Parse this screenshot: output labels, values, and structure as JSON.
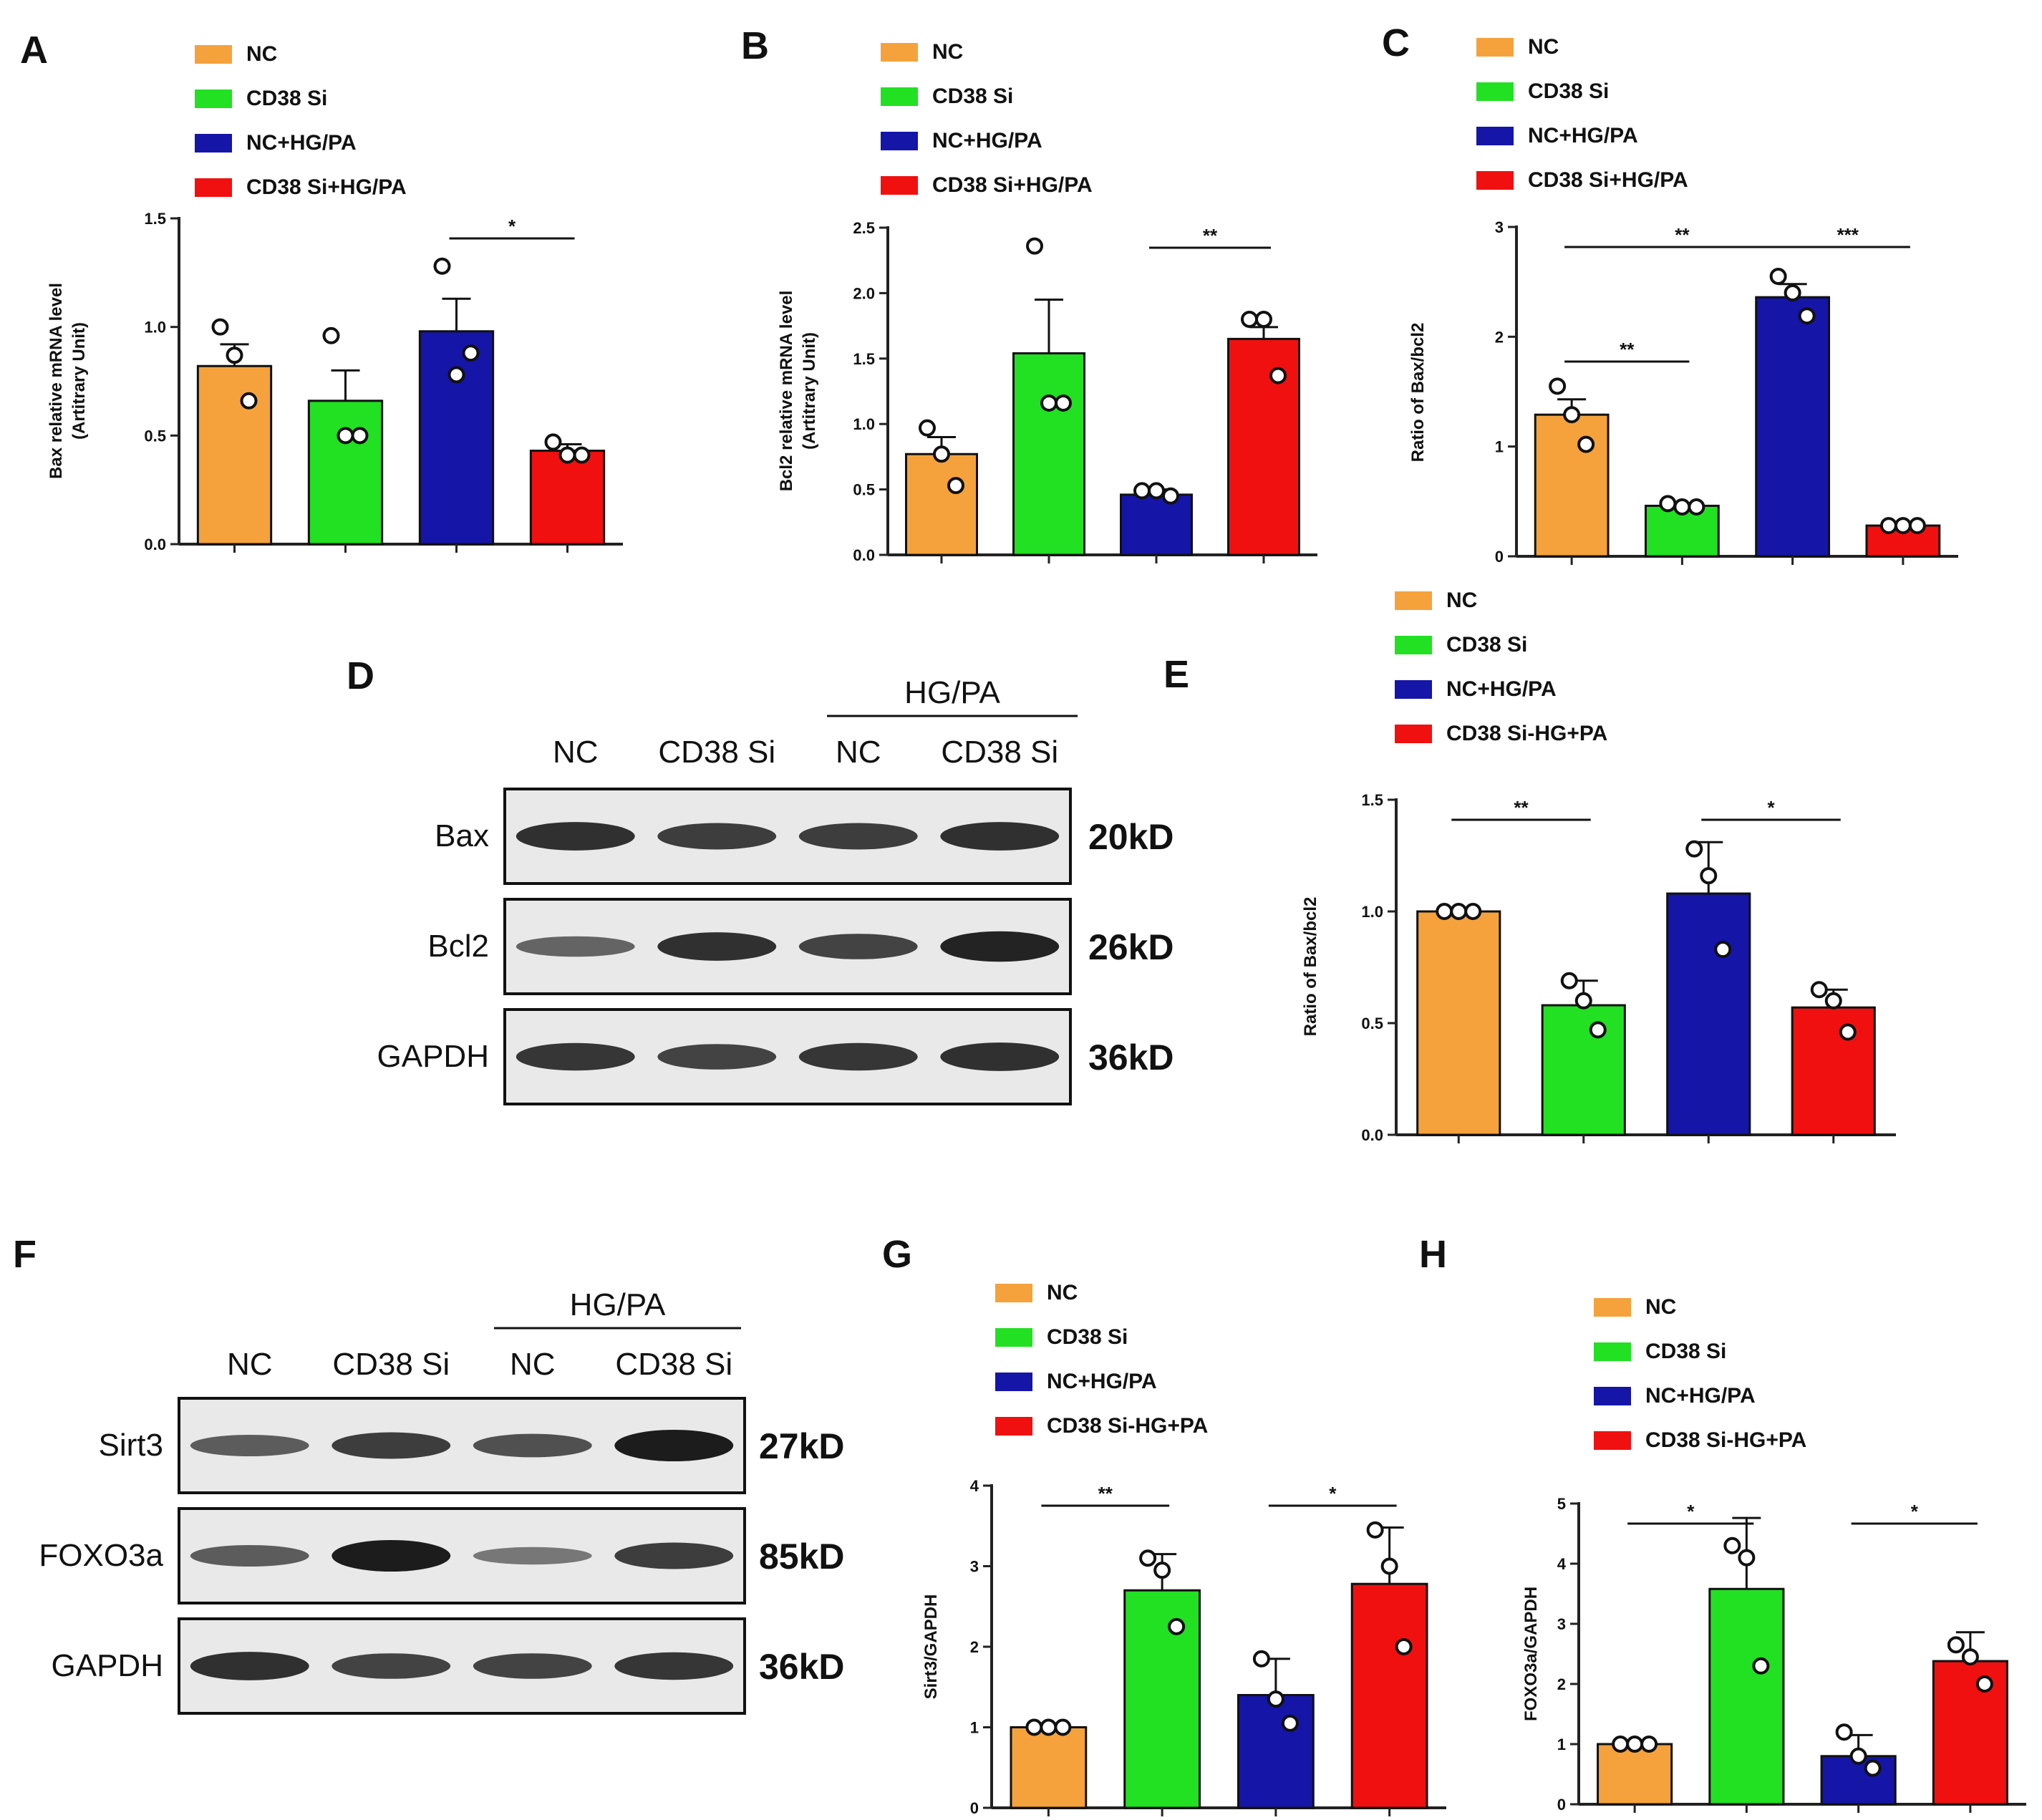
{
  "colors": {
    "NC": "#f5a23c",
    "CD38Si": "#22e022",
    "NCHG": "#1515a8",
    "CD38SiHG": "#f01010"
  },
  "panels": {
    "A": {
      "letter": "A",
      "legend": [
        "NC",
        "CD38 Si",
        "NC+HG/PA",
        "CD38 Si+HG/PA"
      ],
      "ylabel_line1": "Bax  relative mRNA level",
      "ylabel_line2": "(Artitrary Unit)"
    },
    "B": {
      "letter": "B",
      "legend": [
        "NC",
        "CD38 Si",
        "NC+HG/PA",
        "CD38 Si+HG/PA"
      ],
      "ylabel_line1": "Bcl2  relative mRNA level",
      "ylabel_line2": "(Artitrary Unit)"
    },
    "C": {
      "letter": "C",
      "legend": [
        "NC",
        "CD38 Si",
        "NC+HG/PA",
        "CD38 Si+HG/PA"
      ],
      "ylabel_line1": "Ratio of Bax/bcl2",
      "ylabel_line2": ""
    },
    "D": {
      "letter": "D"
    },
    "E": {
      "letter": "E",
      "legend": [
        "NC",
        "CD38 Si",
        "NC+HG/PA",
        "CD38 Si-HG+PA"
      ],
      "ylabel_line1": "Ratio of Bax/bcl2",
      "ylabel_line2": ""
    },
    "F": {
      "letter": "F"
    },
    "G": {
      "letter": "G",
      "legend": [
        "NC",
        "CD38 Si",
        "NC+HG/PA",
        "CD38 Si-HG+PA"
      ],
      "ylabel_line1": "Sirt3/GAPDH",
      "ylabel_line2": ""
    },
    "H": {
      "letter": "H",
      "legend": [
        "NC",
        "CD38 Si",
        "NC+HG/PA",
        "CD38 Si-HG+PA"
      ],
      "ylabel_line1": "FOXO3a/GAPDH",
      "ylabel_line2": ""
    }
  },
  "blots": [
    {
      "letter": "D",
      "hg_label": "HG/PA",
      "lanes": [
        "NC",
        "CD38 Si",
        "NC",
        "CD38 Si"
      ],
      "rows": [
        {
          "protein": "Bax",
          "kd": "20kD",
          "intensity": [
            0.85,
            0.75,
            0.75,
            0.85
          ]
        },
        {
          "protein": "Bcl2",
          "kd": "26kD",
          "intensity": [
            0.45,
            0.85,
            0.7,
            0.95
          ]
        },
        {
          "protein": "GAPDH",
          "kd": "36kD",
          "intensity": [
            0.8,
            0.7,
            0.8,
            0.85
          ]
        }
      ]
    },
    {
      "letter": "F",
      "hg_label": "HG/PA",
      "lanes": [
        "NC",
        "CD38 Si",
        "NC",
        "CD38 Si"
      ],
      "rows": [
        {
          "protein": "Sirt3",
          "kd": "27kD",
          "intensity": [
            0.5,
            0.75,
            0.6,
            1.0
          ]
        },
        {
          "protein": "FOXO3a",
          "kd": "85kD",
          "intensity": [
            0.5,
            1.0,
            0.3,
            0.75
          ]
        },
        {
          "protein": "GAPDH",
          "kd": "36kD",
          "intensity": [
            0.85,
            0.7,
            0.7,
            0.8
          ]
        }
      ]
    }
  ],
  "chart_data": [
    {
      "panel": "A",
      "type": "bar",
      "categories": [
        "NC",
        "CD38 Si",
        "NC+HG/PA",
        "CD38 Si+HG/PA"
      ],
      "values": [
        0.82,
        0.66,
        0.98,
        0.43
      ],
      "errors": [
        0.1,
        0.14,
        0.15,
        0.03
      ],
      "points": [
        [
          1.0,
          0.87,
          0.66
        ],
        [
          0.96,
          0.5,
          0.5
        ],
        [
          1.28,
          0.78,
          0.88
        ],
        [
          0.47,
          0.41,
          0.41
        ]
      ],
      "ylim": [
        0,
        1.5
      ],
      "yticks": [
        0.0,
        0.5,
        1.0,
        1.5
      ],
      "tick_labels": [
        "0.0",
        "0.5",
        "1.0",
        "1.5"
      ],
      "significance": [
        {
          "from": 2,
          "to": 3,
          "label": "*"
        }
      ]
    },
    {
      "panel": "B",
      "type": "bar",
      "categories": [
        "NC",
        "CD38 Si",
        "NC+HG/PA",
        "CD38 Si+HG/PA"
      ],
      "values": [
        0.77,
        1.54,
        0.46,
        1.65
      ],
      "errors": [
        0.13,
        0.41,
        0.04,
        0.09
      ],
      "points": [
        [
          0.97,
          0.77,
          0.53
        ],
        [
          2.36,
          1.16,
          1.16
        ],
        [
          0.49,
          0.49,
          0.45
        ],
        [
          1.8,
          1.8,
          1.37
        ]
      ],
      "ylim": [
        0,
        2.5
      ],
      "yticks": [
        0.0,
        0.5,
        1.0,
        1.5,
        2.0,
        2.5
      ],
      "tick_labels": [
        "0.0",
        "0.5",
        "1.0",
        "1.5",
        "2.0",
        "2.5"
      ],
      "significance": [
        {
          "from": 2,
          "to": 3,
          "label": "**"
        }
      ]
    },
    {
      "panel": "C",
      "type": "bar",
      "categories": [
        "NC",
        "CD38 Si",
        "NC+HG/PA",
        "CD38 Si+HG/PA"
      ],
      "values": [
        1.29,
        0.46,
        2.36,
        0.28
      ],
      "errors": [
        0.14,
        0.02,
        0.12,
        0.02
      ],
      "points": [
        [
          1.55,
          1.29,
          1.02
        ],
        [
          0.48,
          0.45,
          0.45
        ],
        [
          2.55,
          2.4,
          2.19
        ],
        [
          0.28,
          0.28,
          0.28
        ]
      ],
      "ylim": [
        0,
        3
      ],
      "yticks": [
        0,
        1,
        2,
        3
      ],
      "tick_labels": [
        "0",
        "1",
        "2",
        "3"
      ],
      "significance": [
        {
          "from": 0,
          "to": 1,
          "label": "**"
        },
        {
          "from": 0,
          "to": 2,
          "label": "**"
        },
        {
          "from": 2,
          "to": 3,
          "label": "***"
        }
      ]
    },
    {
      "panel": "E",
      "type": "bar",
      "categories": [
        "NC",
        "CD38 Si",
        "NC+HG/PA",
        "CD38 Si-HG+PA"
      ],
      "values": [
        1.0,
        0.58,
        1.08,
        0.57
      ],
      "errors": [
        0.0,
        0.11,
        0.23,
        0.08
      ],
      "points": [
        [
          1.0,
          1.0,
          1.0
        ],
        [
          0.69,
          0.6,
          0.47
        ],
        [
          1.28,
          1.16,
          0.83
        ],
        [
          0.65,
          0.6,
          0.46
        ]
      ],
      "ylim": [
        0,
        1.5
      ],
      "yticks": [
        0.0,
        0.5,
        1.0,
        1.5
      ],
      "tick_labels": [
        "0.0",
        "0.5",
        "1.0",
        "1.5"
      ],
      "significance": [
        {
          "from": 0,
          "to": 1,
          "label": "**"
        },
        {
          "from": 2,
          "to": 3,
          "label": "*"
        }
      ]
    },
    {
      "panel": "G",
      "type": "bar",
      "categories": [
        "NC",
        "CD38 Si",
        "NC+HG/PA",
        "CD38 Si-HG+PA"
      ],
      "values": [
        1.0,
        2.7,
        1.4,
        2.78
      ],
      "errors": [
        0.0,
        0.45,
        0.45,
        0.7
      ],
      "points": [
        [
          1.0,
          1.0,
          1.0
        ],
        [
          3.1,
          2.95,
          2.25
        ],
        [
          1.85,
          1.35,
          1.05
        ],
        [
          3.45,
          3.0,
          2.0
        ]
      ],
      "ylim": [
        0,
        4
      ],
      "yticks": [
        0,
        1,
        2,
        3,
        4
      ],
      "tick_labels": [
        "0",
        "1",
        "2",
        "3",
        "4"
      ],
      "significance": [
        {
          "from": 0,
          "to": 1,
          "label": "**"
        },
        {
          "from": 2,
          "to": 3,
          "label": "*"
        }
      ]
    },
    {
      "panel": "H",
      "type": "bar",
      "categories": [
        "NC",
        "CD38 Si",
        "NC+HG/PA",
        "CD38 Si-HG+PA"
      ],
      "values": [
        1.0,
        3.58,
        0.8,
        2.38
      ],
      "errors": [
        0.0,
        1.18,
        0.35,
        0.48
      ],
      "points": [
        [
          1.0,
          1.0,
          1.0
        ],
        [
          4.3,
          4.1,
          2.3
        ],
        [
          1.2,
          0.8,
          0.6
        ],
        [
          2.65,
          2.45,
          2.0
        ]
      ],
      "ylim": [
        0,
        5
      ],
      "yticks": [
        0,
        1,
        2,
        3,
        4,
        5
      ],
      "tick_labels": [
        "0",
        "1",
        "2",
        "3",
        "4",
        "5"
      ],
      "significance": [
        {
          "from": 0,
          "to": 1,
          "label": "*"
        },
        {
          "from": 2,
          "to": 3,
          "label": "*"
        }
      ]
    }
  ]
}
